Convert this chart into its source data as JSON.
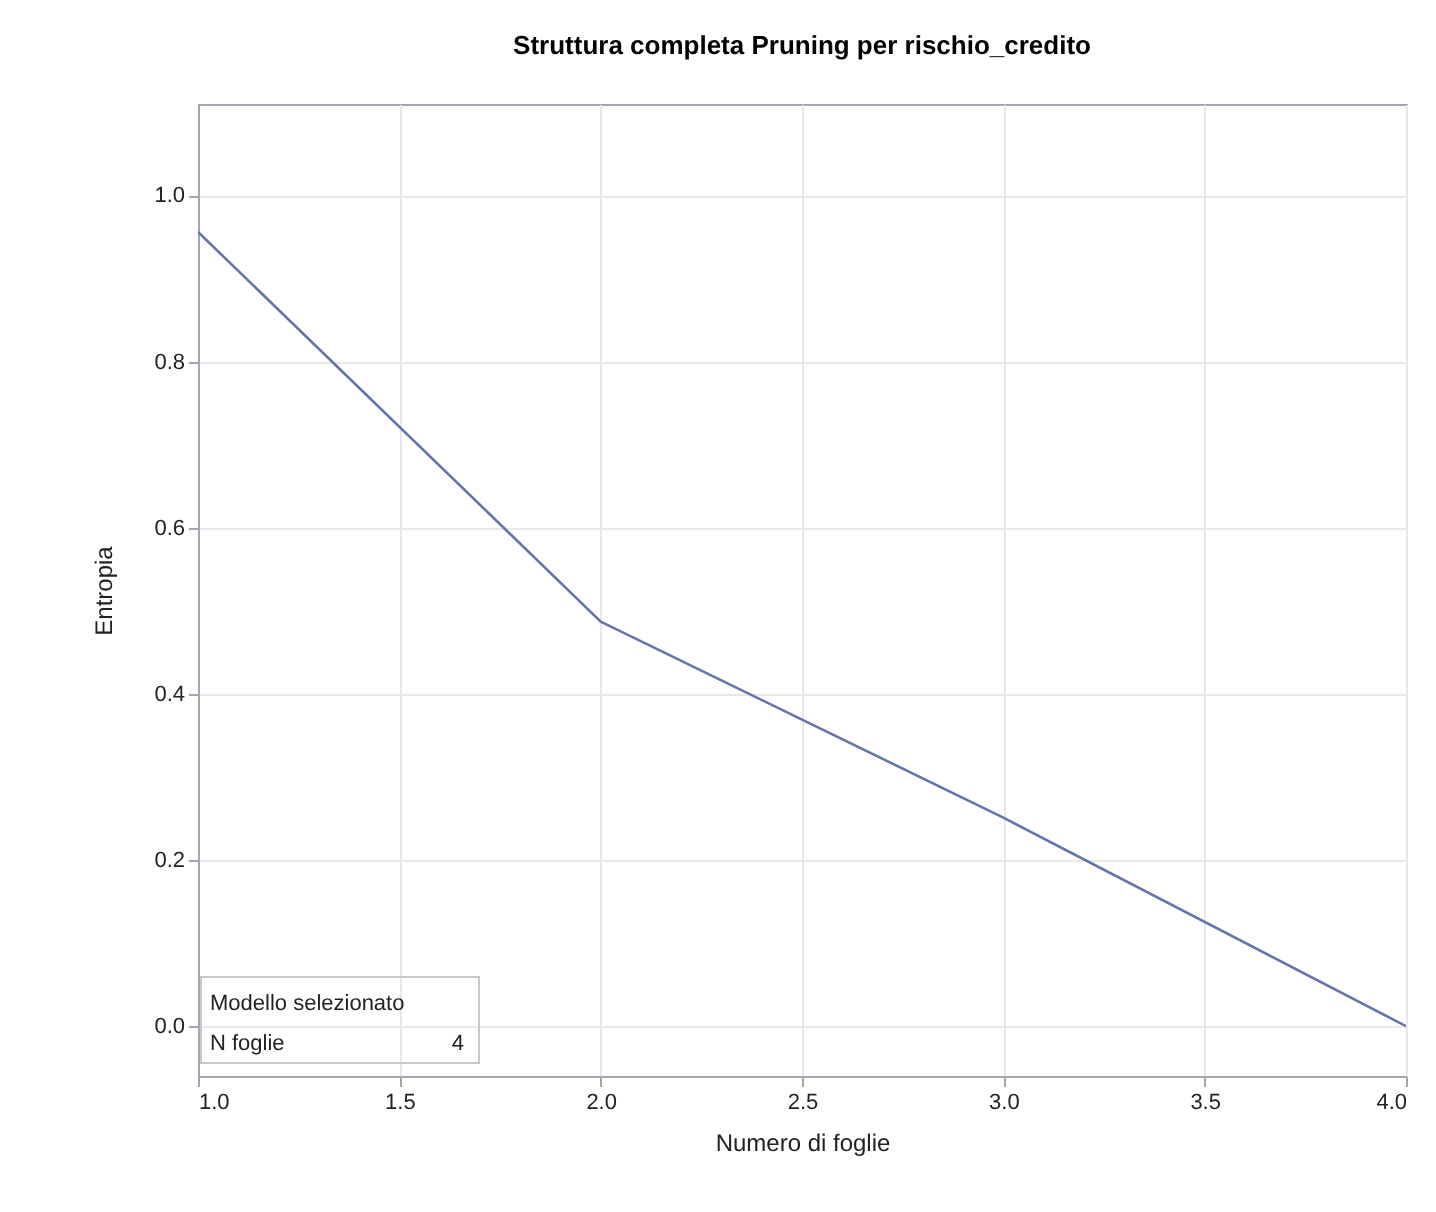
{
  "chart_data": {
    "type": "line",
    "title": "Struttura completa Pruning per rischio_credito",
    "xlabel": "Numero di foglie",
    "ylabel": "Entropia",
    "x": [
      1,
      2,
      3,
      4
    ],
    "series": [
      {
        "color": "#6674ad",
        "values": [
          0.956,
          0.487,
          0.251,
          0
        ]
      }
    ],
    "xlim": [
      1,
      4
    ],
    "xticks": [
      {
        "value": 1,
        "label": "1.0"
      },
      {
        "value": 1.5,
        "label": "1.5"
      },
      {
        "value": 2,
        "label": "2.0"
      },
      {
        "value": 2.5,
        "label": "2.5"
      },
      {
        "value": 3,
        "label": "3.0"
      },
      {
        "value": 3.5,
        "label": "3.5"
      },
      {
        "value": 4,
        "label": "4.0"
      }
    ],
    "ylim": [
      -0.06,
      1.11
    ],
    "yticks": [
      {
        "value": 0,
        "label": "0.0"
      },
      {
        "value": 0.2,
        "label": "0.2"
      },
      {
        "value": 0.4,
        "label": "0.4"
      },
      {
        "value": 0.6,
        "label": "0.6"
      },
      {
        "value": 0.8,
        "label": "0.8"
      },
      {
        "value": 1,
        "label": "1.0"
      }
    ],
    "grid": true,
    "line_style": "solid",
    "marker": "none",
    "annotations": [
      "Modello selezionato",
      "N foglie",
      "4"
    ]
  }
}
